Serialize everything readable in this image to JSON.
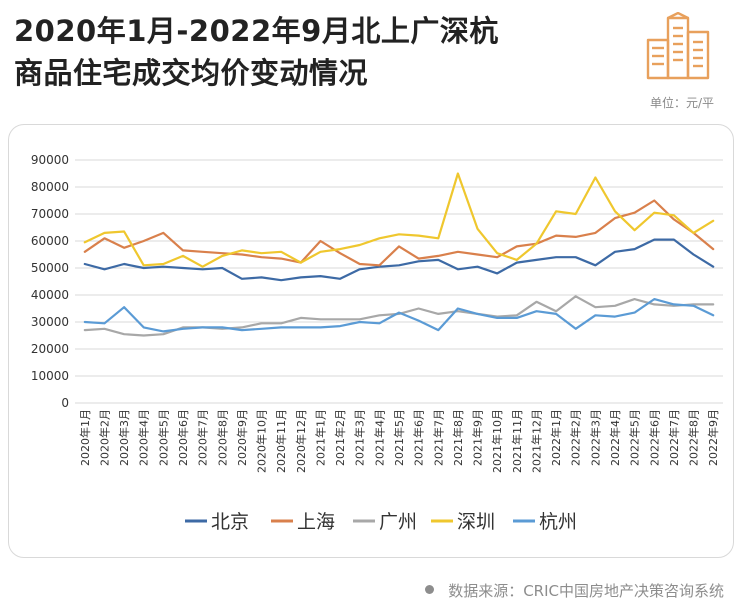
{
  "header": {
    "title_line1": "2020年1月-2022年9月北上广深杭",
    "title_line2": "商品住宅成交均价变动情况",
    "unit_label": "单位：元/平"
  },
  "footer": {
    "source": "数据来源：CRIC中国房地产决策咨询系统"
  },
  "colors": {
    "logo": "#e8a05c",
    "grid": "#d9d9d9",
    "axis_text": "#333333"
  },
  "chart_data": {
    "type": "line",
    "title": "",
    "xlabel": "",
    "ylabel": "",
    "ylim": [
      0,
      90000
    ],
    "yticks": [
      0,
      10000,
      20000,
      30000,
      40000,
      50000,
      60000,
      70000,
      80000,
      90000
    ],
    "grid": true,
    "legend_position": "bottom",
    "categories": [
      "2020年1月",
      "2020年2月",
      "2020年3月",
      "2020年4月",
      "2020年5月",
      "2020年6月",
      "2020年7月",
      "2020年8月",
      "2020年9月",
      "2020年10月",
      "2020年11月",
      "2020年12月",
      "2021年1月",
      "2021年2月",
      "2021年3月",
      "2021年4月",
      "2021年5月",
      "2021年6月",
      "2021年7月",
      "2021年8月",
      "2021年9月",
      "2021年10月",
      "2021年11月",
      "2021年12月",
      "2022年1月",
      "2022年2月",
      "2022年3月",
      "2022年4月",
      "2022年5月",
      "2022年6月",
      "2022年7月",
      "2022年8月",
      "2022年9月"
    ],
    "series": [
      {
        "name": "北京",
        "color": "#3d6aa5",
        "values": [
          51500,
          49500,
          51500,
          50000,
          50500,
          50000,
          49500,
          50000,
          46000,
          46500,
          45500,
          46500,
          47000,
          46000,
          49500,
          50500,
          51000,
          52500,
          53000,
          49500,
          50500,
          48000,
          52000,
          53000,
          54000,
          54000,
          51000,
          56000,
          57000,
          60500,
          60500,
          55000,
          50500
        ]
      },
      {
        "name": "上海",
        "color": "#d9804c",
        "values": [
          56000,
          61000,
          57500,
          60000,
          63000,
          56500,
          56000,
          55500,
          55000,
          54000,
          53500,
          52000,
          60000,
          55500,
          51500,
          51000,
          58000,
          53500,
          54500,
          56000,
          55000,
          54000,
          58000,
          59000,
          62000,
          61500,
          63000,
          68500,
          70500,
          75000,
          68000,
          63000,
          57000
        ]
      },
      {
        "name": "广州",
        "color": "#a8a8a8",
        "values": [
          27000,
          27500,
          25500,
          25000,
          25500,
          28000,
          28000,
          27500,
          28000,
          29500,
          29500,
          31500,
          31000,
          31000,
          31000,
          32500,
          33000,
          35000,
          33000,
          34000,
          33000,
          32000,
          32500,
          37500,
          34000,
          39500,
          35500,
          36000,
          38500,
          36500,
          36000,
          36500,
          36500
        ]
      },
      {
        "name": "深圳",
        "color": "#efc72e",
        "values": [
          59500,
          63000,
          63500,
          51000,
          51500,
          54500,
          50500,
          54500,
          56500,
          55500,
          56000,
          52000,
          56000,
          57000,
          58500,
          61000,
          62500,
          62000,
          61000,
          85000,
          64500,
          55500,
          53000,
          59000,
          71000,
          70000,
          83500,
          71000,
          64000,
          70500,
          69500,
          63000,
          67500
        ]
      },
      {
        "name": "杭州",
        "color": "#5b9bd5",
        "values": [
          30000,
          29500,
          35500,
          28000,
          26500,
          27500,
          28000,
          28000,
          27000,
          27500,
          28000,
          28000,
          28000,
          28500,
          30000,
          29500,
          33500,
          30500,
          27000,
          35000,
          33000,
          31500,
          31500,
          34000,
          33000,
          27500,
          32500,
          32000,
          33500,
          38500,
          36500,
          36000,
          32500
        ]
      }
    ]
  }
}
